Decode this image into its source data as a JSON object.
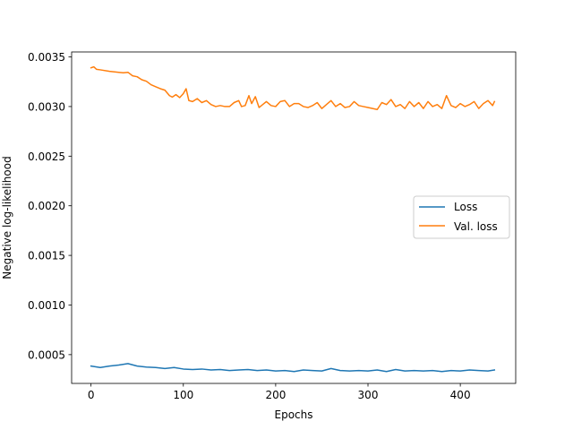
{
  "chart_data": {
    "type": "line",
    "xlabel": "Epochs",
    "ylabel": "Negative log-likelihood",
    "xlim": [
      -21,
      460
    ],
    "ylim": [
      0.00021,
      0.00355
    ],
    "x_ticks": [
      0,
      100,
      200,
      300,
      400
    ],
    "x_tick_labels": [
      "0",
      "100",
      "200",
      "300",
      "400"
    ],
    "y_ticks": [
      0.0005,
      0.001,
      0.0015,
      0.002,
      0.0025,
      0.003,
      0.0035
    ],
    "y_tick_labels": [
      "0.0005",
      "0.0010",
      "0.0015",
      "0.0020",
      "0.0025",
      "0.0030",
      "0.0035"
    ],
    "grid": false,
    "legend_position": "center-right",
    "series": [
      {
        "name": "Loss",
        "color": "#1f77b4",
        "points": [
          [
            0,
            0.000385
          ],
          [
            10,
            0.00037
          ],
          [
            20,
            0.000385
          ],
          [
            30,
            0.000395
          ],
          [
            40,
            0.00041
          ],
          [
            50,
            0.000385
          ],
          [
            60,
            0.000375
          ],
          [
            70,
            0.00037
          ],
          [
            80,
            0.00036
          ],
          [
            90,
            0.00037
          ],
          [
            100,
            0.000355
          ],
          [
            110,
            0.00035
          ],
          [
            120,
            0.000355
          ],
          [
            130,
            0.000345
          ],
          [
            140,
            0.00035
          ],
          [
            150,
            0.00034
          ],
          [
            160,
            0.000345
          ],
          [
            170,
            0.00035
          ],
          [
            180,
            0.00034
          ],
          [
            190,
            0.000345
          ],
          [
            200,
            0.000335
          ],
          [
            210,
            0.00034
          ],
          [
            220,
            0.00033
          ],
          [
            230,
            0.000345
          ],
          [
            240,
            0.00034
          ],
          [
            250,
            0.000335
          ],
          [
            260,
            0.00036
          ],
          [
            270,
            0.00034
          ],
          [
            280,
            0.000335
          ],
          [
            290,
            0.00034
          ],
          [
            300,
            0.000335
          ],
          [
            310,
            0.000345
          ],
          [
            320,
            0.00033
          ],
          [
            330,
            0.00035
          ],
          [
            340,
            0.000335
          ],
          [
            350,
            0.00034
          ],
          [
            360,
            0.000335
          ],
          [
            370,
            0.00034
          ],
          [
            380,
            0.00033
          ],
          [
            390,
            0.00034
          ],
          [
            400,
            0.000335
          ],
          [
            410,
            0.000345
          ],
          [
            420,
            0.00034
          ],
          [
            430,
            0.000335
          ],
          [
            437,
            0.000345
          ]
        ]
      },
      {
        "name": "Val. loss",
        "color": "#ff7f0e",
        "points": [
          [
            0,
            0.00339
          ],
          [
            3,
            0.0034
          ],
          [
            6,
            0.003375
          ],
          [
            10,
            0.00337
          ],
          [
            20,
            0.003355
          ],
          [
            30,
            0.003345
          ],
          [
            35,
            0.00334
          ],
          [
            40,
            0.003345
          ],
          [
            45,
            0.00331
          ],
          [
            50,
            0.0033
          ],
          [
            55,
            0.00327
          ],
          [
            60,
            0.003255
          ],
          [
            65,
            0.00322
          ],
          [
            70,
            0.0032
          ],
          [
            75,
            0.00318
          ],
          [
            80,
            0.003165
          ],
          [
            85,
            0.00311
          ],
          [
            88,
            0.003095
          ],
          [
            92,
            0.00312
          ],
          [
            96,
            0.00309
          ],
          [
            100,
            0.00313
          ],
          [
            103,
            0.00318
          ],
          [
            106,
            0.00306
          ],
          [
            110,
            0.00305
          ],
          [
            115,
            0.00308
          ],
          [
            120,
            0.00304
          ],
          [
            125,
            0.00306
          ],
          [
            130,
            0.00302
          ],
          [
            135,
            0.003
          ],
          [
            140,
            0.00301
          ],
          [
            145,
            0.003
          ],
          [
            150,
            0.003
          ],
          [
            155,
            0.00304
          ],
          [
            160,
            0.00306
          ],
          [
            163,
            0.003
          ],
          [
            167,
            0.00301
          ],
          [
            171,
            0.00311
          ],
          [
            174,
            0.00303
          ],
          [
            178,
            0.0031
          ],
          [
            182,
            0.00299
          ],
          [
            186,
            0.00302
          ],
          [
            190,
            0.00305
          ],
          [
            195,
            0.00301
          ],
          [
            200,
            0.003
          ],
          [
            205,
            0.00305
          ],
          [
            210,
            0.00306
          ],
          [
            215,
            0.003
          ],
          [
            220,
            0.00303
          ],
          [
            225,
            0.00303
          ],
          [
            230,
            0.003
          ],
          [
            235,
            0.00299
          ],
          [
            240,
            0.00301
          ],
          [
            245,
            0.00304
          ],
          [
            250,
            0.00298
          ],
          [
            255,
            0.00302
          ],
          [
            260,
            0.00306
          ],
          [
            265,
            0.003
          ],
          [
            270,
            0.00303
          ],
          [
            275,
            0.00299
          ],
          [
            280,
            0.003
          ],
          [
            285,
            0.00305
          ],
          [
            290,
            0.00301
          ],
          [
            295,
            0.003
          ],
          [
            300,
            0.00299
          ],
          [
            305,
            0.00298
          ],
          [
            310,
            0.00297
          ],
          [
            315,
            0.00304
          ],
          [
            320,
            0.00302
          ],
          [
            325,
            0.00307
          ],
          [
            330,
            0.003
          ],
          [
            335,
            0.00302
          ],
          [
            340,
            0.00298
          ],
          [
            345,
            0.00305
          ],
          [
            350,
            0.003
          ],
          [
            355,
            0.00304
          ],
          [
            360,
            0.00298
          ],
          [
            365,
            0.00305
          ],
          [
            370,
            0.003
          ],
          [
            375,
            0.00302
          ],
          [
            380,
            0.00298
          ],
          [
            385,
            0.00311
          ],
          [
            390,
            0.00301
          ],
          [
            395,
            0.00299
          ],
          [
            400,
            0.00303
          ],
          [
            405,
            0.003
          ],
          [
            410,
            0.00302
          ],
          [
            415,
            0.00305
          ],
          [
            420,
            0.00298
          ],
          [
            425,
            0.00303
          ],
          [
            430,
            0.00306
          ],
          [
            435,
            0.00301
          ],
          [
            437,
            0.00305
          ]
        ]
      }
    ]
  }
}
